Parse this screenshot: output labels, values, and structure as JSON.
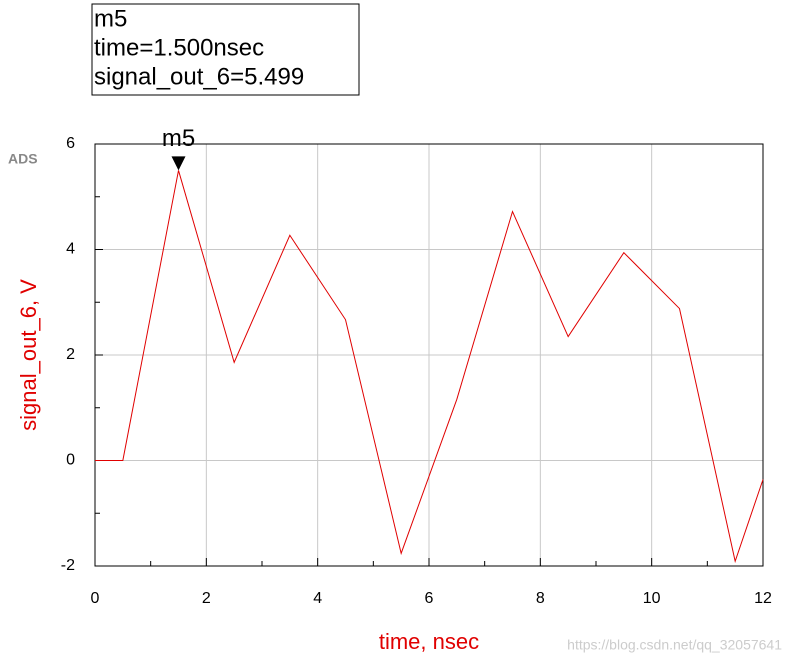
{
  "chart_data": {
    "type": "line",
    "logo": "ADS",
    "marker": {
      "label": "m5",
      "index": 2,
      "readout": [
        "m5",
        "time=1.500nsec",
        "signal_out_6=5.499"
      ]
    },
    "xlabel": "time, nsec",
    "ylabel": "signal_out_6, V",
    "watermark": "https://blog.csdn.net/qq_32057641",
    "x": [
      0,
      0.5,
      1.5,
      2.5,
      3.5,
      4.5,
      5.5,
      6.5,
      7.5,
      8.5,
      9.5,
      10.5,
      11.5,
      12
    ],
    "series": [
      {
        "color": "#e00000",
        "values": [
          0,
          0,
          5.499,
          1.86,
          4.27,
          2.67,
          -1.76,
          1.16,
          4.72,
          2.35,
          3.94,
          2.88,
          -1.91,
          -0.36
        ]
      }
    ],
    "xlim": [
      0,
      12
    ],
    "xticks": [
      0,
      2,
      4,
      6,
      8,
      10,
      12
    ],
    "ylim": [
      -2,
      6
    ],
    "yticks": [
      -2,
      0,
      2,
      4,
      6
    ],
    "grid": true
  }
}
